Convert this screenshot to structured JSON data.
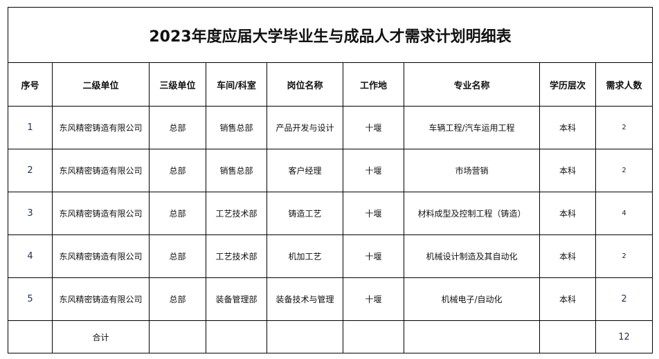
{
  "title": "2023年度应届大学毕业生与成品人才需求计划明细表",
  "headers": [
    "序号",
    "二级单位",
    "三级单位",
    "车间/科室",
    "岗位名称",
    "工作地",
    "专业名称",
    "学历层次",
    "需求人数"
  ],
  "rows": [
    [
      "1",
      "东风精密铸造有限公司",
      "总部",
      "销售总部",
      "产品开发与设计",
      "十堰",
      "车辆工程/汽车运用工程",
      "本科",
      "2"
    ],
    [
      "2",
      "东风精密铸造有限公司",
      "总部",
      "销售总部",
      "客户经理",
      "十堰",
      "市场营销",
      "本科",
      "2"
    ],
    [
      "3",
      "东风精密铸造有限公司",
      "总部",
      "工艺技术部",
      "铸造工艺",
      "十堰",
      "材料成型及控制工程（铸造）",
      "本科",
      "4"
    ],
    [
      "4",
      "东风精密铸造有限公司",
      "总部",
      "工艺技术部",
      "机加工艺",
      "十堰",
      "机械设计制造及其自动化",
      "本科",
      "2"
    ],
    [
      "5",
      "东风精密铸造有限公司",
      "总部",
      "装备管理部",
      "装备技术与管理",
      "十堰",
      "机械电子/自动化",
      "本科",
      "2"
    ]
  ],
  "total": {
    "label": "合计",
    "value": "12"
  }
}
